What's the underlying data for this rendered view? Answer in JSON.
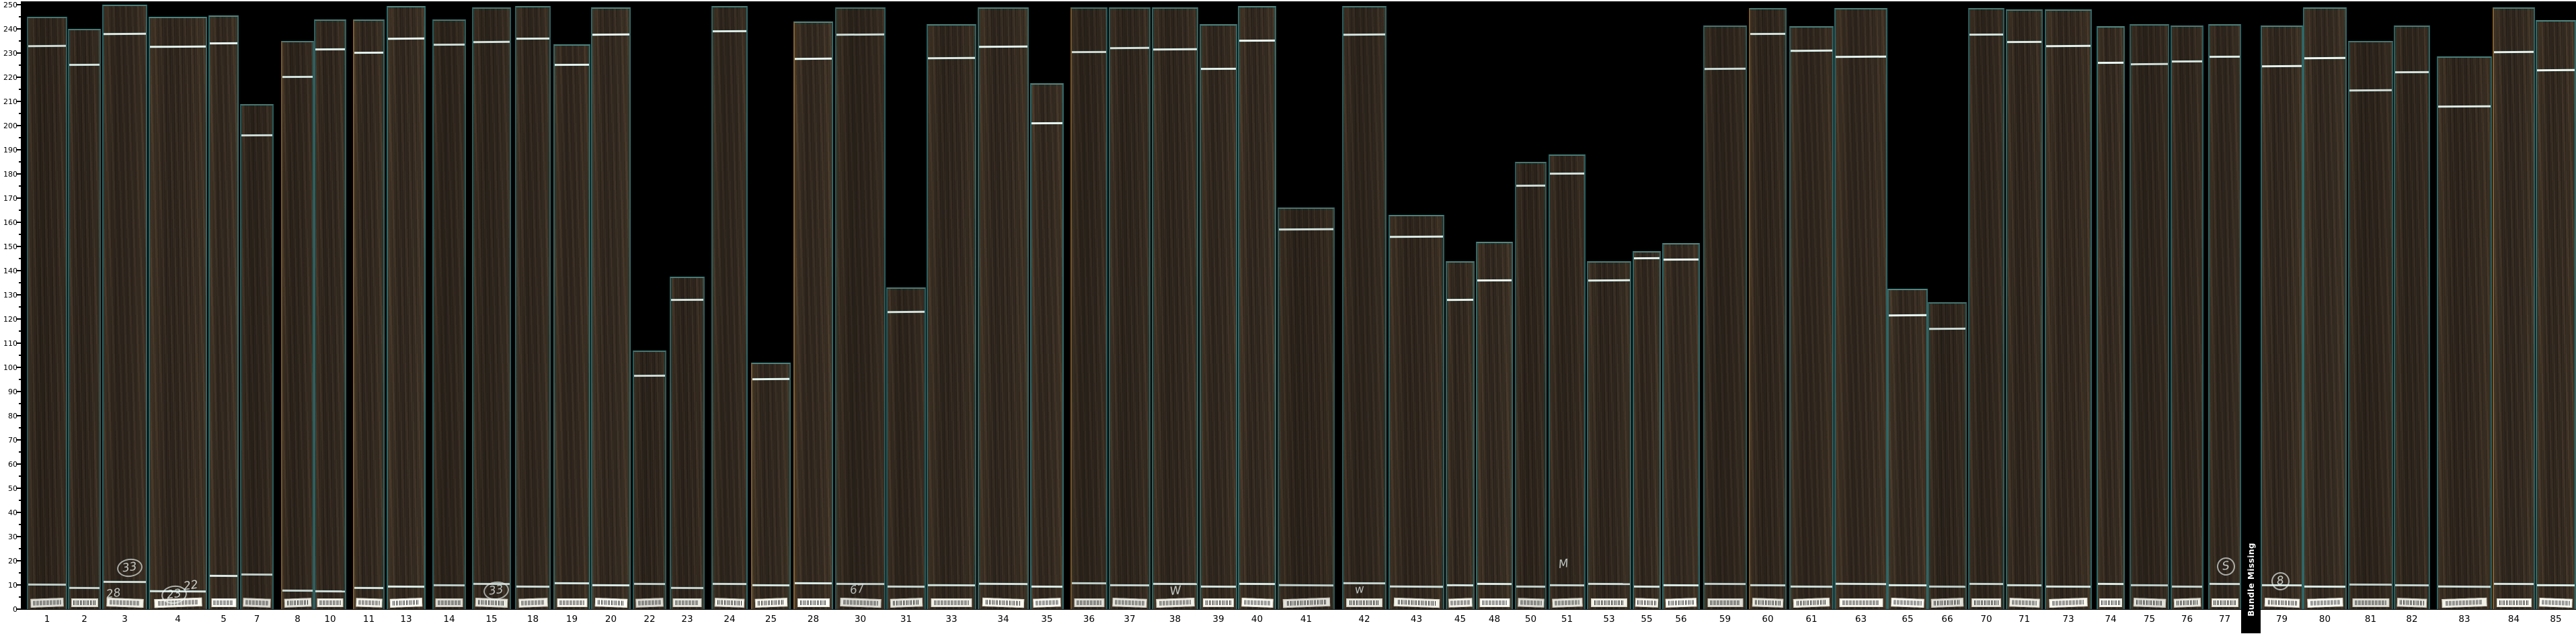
{
  "page": {
    "background": "#ffffff"
  },
  "chart_data": {
    "type": "bar",
    "title": "",
    "xlabel": "",
    "ylabel": "",
    "ylim": [
      0,
      250
    ],
    "ytick_step": 10,
    "ytick_minor_step": 5,
    "grid": false,
    "legend": null,
    "colors": {
      "plot_bg": "#000000",
      "wood": "#3b3026",
      "teal_edge": "#2b6263",
      "teal_edge_light": "#47807c",
      "tan_edge": "#7d5c2e",
      "chalk": "#e3f5f1",
      "tag_bg": "#f3f2e9",
      "axis": "#000000"
    },
    "missing_bundle": {
      "text": "Bundle Missing",
      "x0": 3333,
      "x1": 3362
    },
    "bars": [
      {
        "label": "1",
        "x0": 40,
        "x1": 100,
        "length": 245,
        "top_mark": 234,
        "bottom_mark": 9.8,
        "tan": false,
        "chalk": []
      },
      {
        "label": "2",
        "x0": 101,
        "x1": 150,
        "length": 240,
        "top_mark": 226,
        "bottom_mark": 8.5,
        "tan": false,
        "chalk": []
      },
      {
        "label": "3",
        "x0": 152,
        "x1": 219,
        "length": 250,
        "top_mark": 239,
        "bottom_mark": 11,
        "tan": false,
        "chalk": [
          {
            "text": "28",
            "circled": false,
            "dy": 14,
            "dx": 6
          },
          {
            "text": "33",
            "circled": true,
            "dy": 48,
            "dx": 32
          }
        ]
      },
      {
        "label": "4",
        "x0": 221,
        "x1": 308,
        "length": 245,
        "top_mark": 233.5,
        "bottom_mark": 7,
        "tan": false,
        "chalk": [
          {
            "text": "23",
            "circled": true,
            "dy": 8,
            "dx": 20
          },
          {
            "text": "22",
            "circled": false,
            "dy": 26,
            "dx": 60
          }
        ]
      },
      {
        "label": "5",
        "x0": 310,
        "x1": 355,
        "length": 245.5,
        "top_mark": 235,
        "bottom_mark": 13.5,
        "tan": false,
        "chalk": []
      },
      {
        "label": "7",
        "x0": 357,
        "x1": 407,
        "length": 209,
        "top_mark": 197,
        "bottom_mark": 14,
        "tan": false,
        "chalk": []
      },
      {
        "label": "8",
        "x0": 418,
        "x1": 467,
        "length": 235,
        "top_mark": 221,
        "bottom_mark": 7.5,
        "tan": true,
        "chalk": []
      },
      {
        "label": "10",
        "x0": 467,
        "x1": 515,
        "length": 244,
        "top_mark": 232.5,
        "bottom_mark": 7,
        "tan": false,
        "chalk": []
      },
      {
        "label": "11",
        "x0": 525,
        "x1": 572,
        "length": 244,
        "top_mark": 231,
        "bottom_mark": 8.5,
        "tan": true,
        "chalk": []
      },
      {
        "label": "13",
        "x0": 575,
        "x1": 633,
        "length": 249.5,
        "top_mark": 237,
        "bottom_mark": 9,
        "tan": false,
        "chalk": []
      },
      {
        "label": "14",
        "x0": 643,
        "x1": 693,
        "length": 244,
        "top_mark": 234.5,
        "bottom_mark": 9.5,
        "tan": false,
        "chalk": []
      },
      {
        "label": "15",
        "x0": 702,
        "x1": 760,
        "length": 249,
        "top_mark": 235.5,
        "bottom_mark": 10,
        "tan": false,
        "chalk": [
          {
            "text": "33",
            "circled": true,
            "dy": 14,
            "dx": 28
          }
        ]
      },
      {
        "label": "18",
        "x0": 766,
        "x1": 819,
        "length": 249.5,
        "top_mark": 237,
        "bottom_mark": 9,
        "tan": false,
        "chalk": []
      },
      {
        "label": "19",
        "x0": 823,
        "x1": 878,
        "length": 233.5,
        "top_mark": 226,
        "bottom_mark": 10.5,
        "tan": false,
        "chalk": []
      },
      {
        "label": "20",
        "x0": 879,
        "x1": 938,
        "length": 249,
        "top_mark": 238.5,
        "bottom_mark": 9.5,
        "tan": false,
        "chalk": []
      },
      {
        "label": "22",
        "x0": 941,
        "x1": 991,
        "length": 107,
        "top_mark": 97.5,
        "bottom_mark": 10,
        "tan": false,
        "chalk": []
      },
      {
        "label": "23",
        "x0": 996,
        "x1": 1048,
        "length": 137.5,
        "top_mark": 129,
        "bottom_mark": 8.5,
        "tan": false,
        "chalk": []
      },
      {
        "label": "24",
        "x0": 1058,
        "x1": 1112,
        "length": 249.5,
        "top_mark": 240,
        "bottom_mark": 10,
        "tan": false,
        "chalk": []
      },
      {
        "label": "25",
        "x0": 1117,
        "x1": 1176,
        "length": 102,
        "top_mark": 96,
        "bottom_mark": 9.5,
        "tan": true,
        "chalk": []
      },
      {
        "label": "28",
        "x0": 1180,
        "x1": 1239,
        "length": 243,
        "top_mark": 228.5,
        "bottom_mark": 10.5,
        "tan": true,
        "chalk": []
      },
      {
        "label": "30",
        "x0": 1242,
        "x1": 1317,
        "length": 249,
        "top_mark": 238.5,
        "bottom_mark": 10,
        "tan": false,
        "chalk": [
          {
            "text": "67",
            "circled": false,
            "dy": 20,
            "dx": 28
          }
        ]
      },
      {
        "label": "31",
        "x0": 1318,
        "x1": 1377,
        "length": 133,
        "top_mark": 124,
        "bottom_mark": 9,
        "tan": false,
        "chalk": []
      },
      {
        "label": "33",
        "x0": 1378,
        "x1": 1452,
        "length": 242,
        "top_mark": 229,
        "bottom_mark": 9.5,
        "tan": false,
        "chalk": []
      },
      {
        "label": "34",
        "x0": 1454,
        "x1": 1530,
        "length": 249,
        "top_mark": 233.5,
        "bottom_mark": 10,
        "tan": false,
        "chalk": []
      },
      {
        "label": "35",
        "x0": 1532,
        "x1": 1582,
        "length": 217.5,
        "top_mark": 202,
        "bottom_mark": 9,
        "tan": false,
        "chalk": []
      },
      {
        "label": "36",
        "x0": 1592,
        "x1": 1647,
        "length": 249,
        "top_mark": 231.5,
        "bottom_mark": 10.5,
        "tan": true,
        "chalk": []
      },
      {
        "label": "37",
        "x0": 1649,
        "x1": 1711,
        "length": 249,
        "top_mark": 233,
        "bottom_mark": 9.5,
        "tan": false,
        "chalk": []
      },
      {
        "label": "38",
        "x0": 1713,
        "x1": 1782,
        "length": 249,
        "top_mark": 232.5,
        "bottom_mark": 10,
        "tan": false,
        "chalk": [
          {
            "text": "W",
            "circled": false,
            "dy": 18,
            "dx": 38
          }
        ]
      },
      {
        "label": "39",
        "x0": 1784,
        "x1": 1840,
        "length": 242,
        "top_mark": 224.5,
        "bottom_mark": 9,
        "tan": false,
        "chalk": []
      },
      {
        "label": "40",
        "x0": 1841,
        "x1": 1898,
        "length": 249.5,
        "top_mark": 236,
        "bottom_mark": 10,
        "tan": false,
        "chalk": []
      },
      {
        "label": "41",
        "x0": 1900,
        "x1": 1985,
        "length": 166,
        "top_mark": 158,
        "bottom_mark": 9.5,
        "tan": false,
        "chalk": []
      },
      {
        "label": "42",
        "x0": 1996,
        "x1": 2062,
        "length": 249.5,
        "top_mark": 238.5,
        "bottom_mark": 10.5,
        "tan": false,
        "chalk": [
          {
            "text": "w",
            "circled": false,
            "dy": 20,
            "dx": 28
          }
        ]
      },
      {
        "label": "43",
        "x0": 2065,
        "x1": 2148,
        "length": 163,
        "top_mark": 155,
        "bottom_mark": 9,
        "tan": false,
        "chalk": []
      },
      {
        "label": "45",
        "x0": 2150,
        "x1": 2193,
        "length": 144,
        "top_mark": 129,
        "bottom_mark": 9.5,
        "tan": false,
        "chalk": []
      },
      {
        "label": "48",
        "x0": 2195,
        "x1": 2250,
        "length": 152,
        "top_mark": 137,
        "bottom_mark": 10,
        "tan": false,
        "chalk": []
      },
      {
        "label": "50",
        "x0": 2253,
        "x1": 2300,
        "length": 185,
        "top_mark": 176,
        "bottom_mark": 9,
        "tan": false,
        "chalk": []
      },
      {
        "label": "51",
        "x0": 2303,
        "x1": 2358,
        "length": 188,
        "top_mark": 181,
        "bottom_mark": 9.5,
        "tan": false,
        "chalk": [
          {
            "text": "M",
            "circled": false,
            "dy": 58,
            "dx": 26
          }
        ]
      },
      {
        "label": "53",
        "x0": 2360,
        "x1": 2426,
        "length": 144,
        "top_mark": 137,
        "bottom_mark": 10,
        "tan": false,
        "chalk": []
      },
      {
        "label": "55",
        "x0": 2428,
        "x1": 2470,
        "length": 148,
        "top_mark": 146,
        "bottom_mark": 9,
        "tan": false,
        "chalk": []
      },
      {
        "label": "56",
        "x0": 2472,
        "x1": 2528,
        "length": 151.5,
        "top_mark": 145.5,
        "bottom_mark": 9.5,
        "tan": false,
        "chalk": []
      },
      {
        "label": "59",
        "x0": 2533,
        "x1": 2598,
        "length": 241.5,
        "top_mark": 224.5,
        "bottom_mark": 10,
        "tan": false,
        "chalk": []
      },
      {
        "label": "60",
        "x0": 2601,
        "x1": 2657,
        "length": 248.5,
        "top_mark": 239,
        "bottom_mark": 9.5,
        "tan": true,
        "chalk": []
      },
      {
        "label": "61",
        "x0": 2661,
        "x1": 2727,
        "length": 241,
        "top_mark": 232,
        "bottom_mark": 9,
        "tan": false,
        "chalk": []
      },
      {
        "label": "63",
        "x0": 2728,
        "x1": 2807,
        "length": 248.5,
        "top_mark": 229.5,
        "bottom_mark": 10,
        "tan": false,
        "chalk": []
      },
      {
        "label": "65",
        "x0": 2807,
        "x1": 2867,
        "length": 132.5,
        "top_mark": 122.5,
        "bottom_mark": 9.5,
        "tan": false,
        "chalk": []
      },
      {
        "label": "66",
        "x0": 2867,
        "x1": 2925,
        "length": 127,
        "top_mark": 117,
        "bottom_mark": 9,
        "tan": false,
        "chalk": []
      },
      {
        "label": "70",
        "x0": 2927,
        "x1": 2981,
        "length": 248.5,
        "top_mark": 238.5,
        "bottom_mark": 10,
        "tan": false,
        "chalk": []
      },
      {
        "label": "71",
        "x0": 2983,
        "x1": 3038,
        "length": 248,
        "top_mark": 235.5,
        "bottom_mark": 9.5,
        "tan": false,
        "chalk": []
      },
      {
        "label": "73",
        "x0": 3041,
        "x1": 3111,
        "length": 248,
        "top_mark": 234,
        "bottom_mark": 9,
        "tan": false,
        "chalk": []
      },
      {
        "label": "74",
        "x0": 3118,
        "x1": 3160,
        "length": 241,
        "top_mark": 227,
        "bottom_mark": 10,
        "tan": false,
        "chalk": []
      },
      {
        "label": "75",
        "x0": 3167,
        "x1": 3226,
        "length": 242,
        "top_mark": 226.5,
        "bottom_mark": 9.5,
        "tan": false,
        "chalk": []
      },
      {
        "label": "76",
        "x0": 3228,
        "x1": 3277,
        "length": 241.5,
        "top_mark": 227.5,
        "bottom_mark": 9,
        "tan": false,
        "chalk": []
      },
      {
        "label": "77",
        "x0": 3284,
        "x1": 3333,
        "length": 242,
        "top_mark": 229.5,
        "bottom_mark": 10,
        "tan": false,
        "chalk": [
          {
            "text": "S",
            "circled": true,
            "dy": 50,
            "dx": 24
          }
        ]
      },
      {
        "label": "79",
        "x0": 3362,
        "x1": 3425,
        "length": 241.5,
        "top_mark": 225.5,
        "bottom_mark": 9.5,
        "tan": false,
        "chalk": [
          {
            "text": "8",
            "circled": true,
            "dy": 28,
            "dx": 24
          }
        ]
      },
      {
        "label": "80",
        "x0": 3425,
        "x1": 3490,
        "length": 249,
        "top_mark": 229,
        "bottom_mark": 9,
        "tan": false,
        "chalk": []
      },
      {
        "label": "81",
        "x0": 3492,
        "x1": 3559,
        "length": 235,
        "top_mark": 215.5,
        "bottom_mark": 10,
        "tan": false,
        "chalk": []
      },
      {
        "label": "82",
        "x0": 3560,
        "x1": 3614,
        "length": 241.5,
        "top_mark": 223,
        "bottom_mark": 9.5,
        "tan": false,
        "chalk": []
      },
      {
        "label": "83",
        "x0": 3624,
        "x1": 3706,
        "length": 228.5,
        "top_mark": 209,
        "bottom_mark": 9,
        "tan": false,
        "chalk": []
      },
      {
        "label": "84",
        "x0": 3707,
        "x1": 3770,
        "length": 249,
        "top_mark": 231.5,
        "bottom_mark": 10,
        "tan": true,
        "chalk": []
      },
      {
        "label": "85",
        "x0": 3771,
        "x1": 3831,
        "length": 243.5,
        "top_mark": 224,
        "bottom_mark": 9.5,
        "tan": false,
        "chalk": []
      }
    ]
  }
}
